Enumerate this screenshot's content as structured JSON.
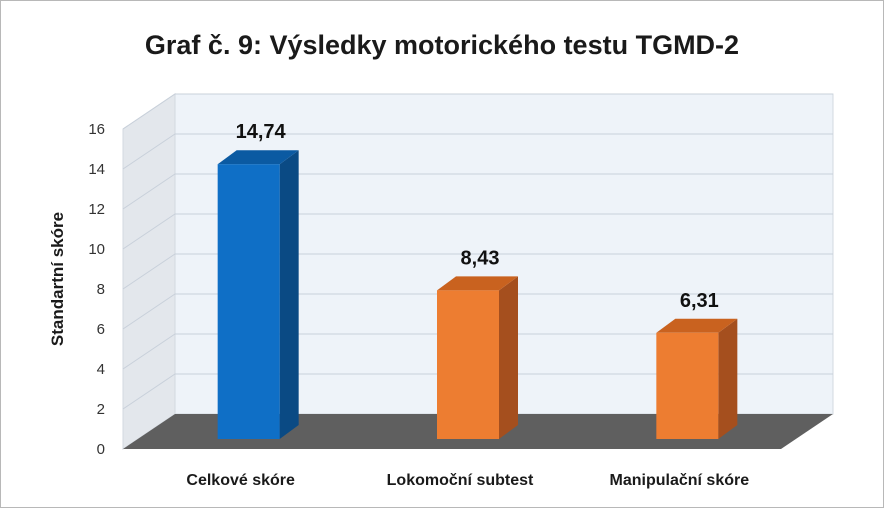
{
  "chart_data": {
    "type": "bar",
    "title": "Graf č. 9: Výsledky motorického testu TGMD-2",
    "ylabel": "Standartní skóre",
    "xlabel": "",
    "ylim": [
      0,
      16
    ],
    "yticks": [
      0,
      2,
      4,
      6,
      8,
      10,
      12,
      14,
      16
    ],
    "categories": [
      "Celkové skóre",
      "Lokomoční subtest",
      "Manipulační skóre"
    ],
    "values": [
      14.74,
      8.43,
      6.31
    ],
    "data_labels": [
      "14,74",
      "8,43",
      "6,31"
    ],
    "grid": true,
    "legend": "none",
    "colors": {
      "bar_front": [
        "#0f6fc6",
        "#ed7d31",
        "#ed7d31"
      ],
      "bar_side": [
        "#0a4a84",
        "#a54f1e",
        "#a54f1e"
      ],
      "bar_top": [
        "#0b5aa2",
        "#c9621f",
        "#c9621f"
      ],
      "back_wall": "#eef3f9",
      "side_wall": "#e3e7ec",
      "floor": "#5f5f5f",
      "grid": "#c8d0da"
    }
  }
}
